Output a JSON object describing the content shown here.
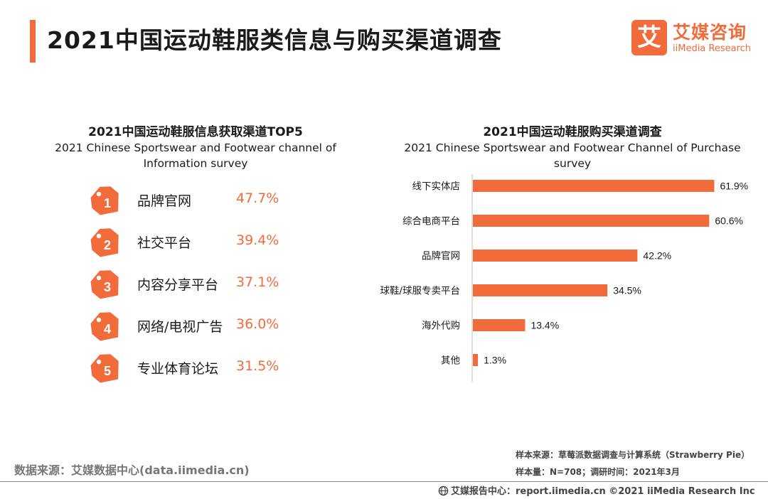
{
  "header": {
    "title": "2021中国运动鞋服类信息与购买渠道调查",
    "logo_glyph": "艾",
    "logo_cn": "艾媒咨询",
    "logo_en": "iiMedia Research",
    "accent_color": "#f26b3a"
  },
  "left_panel": {
    "title_cn": "2021中国运动鞋服信息获取渠道TOP5",
    "title_en_line1": "2021 Chinese Sportswear and Footwear channel of",
    "title_en_line2": "Information survey",
    "items": [
      {
        "rank": "1",
        "label": "品牌官网",
        "value": "47.7%"
      },
      {
        "rank": "2",
        "label": "社交平台",
        "value": "39.4%"
      },
      {
        "rank": "3",
        "label": "内容分享平台",
        "value": "37.1%"
      },
      {
        "rank": "4",
        "label": "网络/电视广告",
        "value": "36.0%"
      },
      {
        "rank": "5",
        "label": "专业体育论坛",
        "value": "31.5%"
      }
    ]
  },
  "right_panel": {
    "title_cn": "2021中国运动鞋服购买渠道调查",
    "title_en_line1": "2021 Chinese Sportswear and Footwear Channel of Purchase",
    "title_en_line2": "survey"
  },
  "chart_data": {
    "type": "bar",
    "orientation": "horizontal",
    "title": "2021中国运动鞋服购买渠道调查",
    "categories": [
      "线下实体店",
      "综合电商平台",
      "品牌官网",
      "球鞋/球服专卖平台",
      "海外代购",
      "其他"
    ],
    "values": [
      61.9,
      60.6,
      42.2,
      34.5,
      13.4,
      1.3
    ],
    "value_suffix": "%",
    "xlim": [
      0,
      62
    ],
    "bar_color": "#f26b3a"
  },
  "source": {
    "left": "数据来源：艾媒数据中心(data.iimedia.cn)",
    "right_line1": "样本来源：草莓派数据调查与计算系统（Strawberry Pie）",
    "right_line2": "样本量：N=708；调研时间：2021年3月"
  },
  "footer": {
    "text": "艾媒报告中心：report.iimedia.cn  ©2021  iiMedia Research  Inc"
  }
}
